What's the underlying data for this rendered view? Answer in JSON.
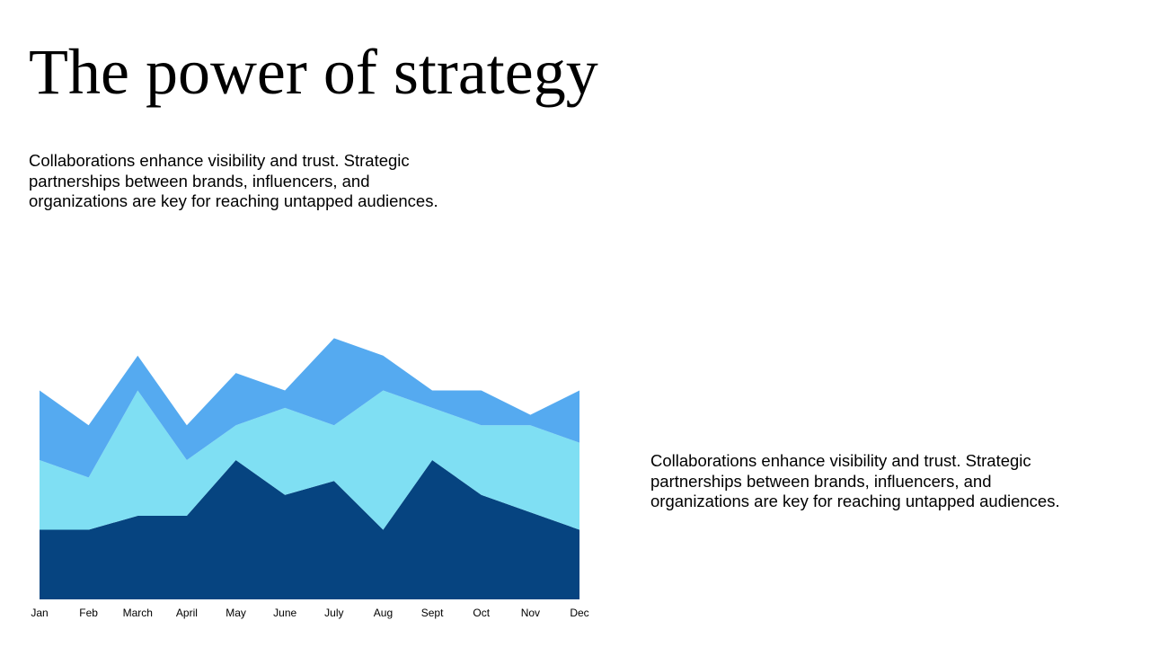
{
  "title": "The power of strategy",
  "body_text_top": "Collaborations enhance visibility and trust. Strategic partnerships between brands, influencers, and organizations are key for reaching untapped audiences.",
  "body_text_right": "Collaborations enhance visibility and trust. Strategic partnerships between brands, influencers, and organizations are key for reaching untapped audiences.",
  "colors": {
    "series_1": "#064480",
    "series_2": "#7fdff3",
    "series_3": "#55aaf0",
    "background": "#ffffff"
  },
  "chart_data": {
    "type": "area",
    "stacked": true,
    "categories": [
      "Jan",
      "Feb",
      "March",
      "April",
      "May",
      "June",
      "July",
      "Aug",
      "Sept",
      "Oct",
      "Nov",
      "Dec"
    ],
    "series": [
      {
        "values": [
          20,
          20,
          24,
          24,
          40,
          30,
          34,
          20,
          40,
          30,
          25,
          20
        ]
      },
      {
        "values": [
          20,
          15,
          36,
          16,
          10,
          25,
          16,
          40,
          15,
          20,
          25,
          25
        ]
      },
      {
        "values": [
          20,
          15,
          10,
          10,
          15,
          5,
          25,
          10,
          5,
          10,
          3,
          15
        ]
      }
    ],
    "ylim": [
      0,
      80
    ],
    "grid": false,
    "legend": "none",
    "xlabel": "",
    "ylabel": ""
  }
}
